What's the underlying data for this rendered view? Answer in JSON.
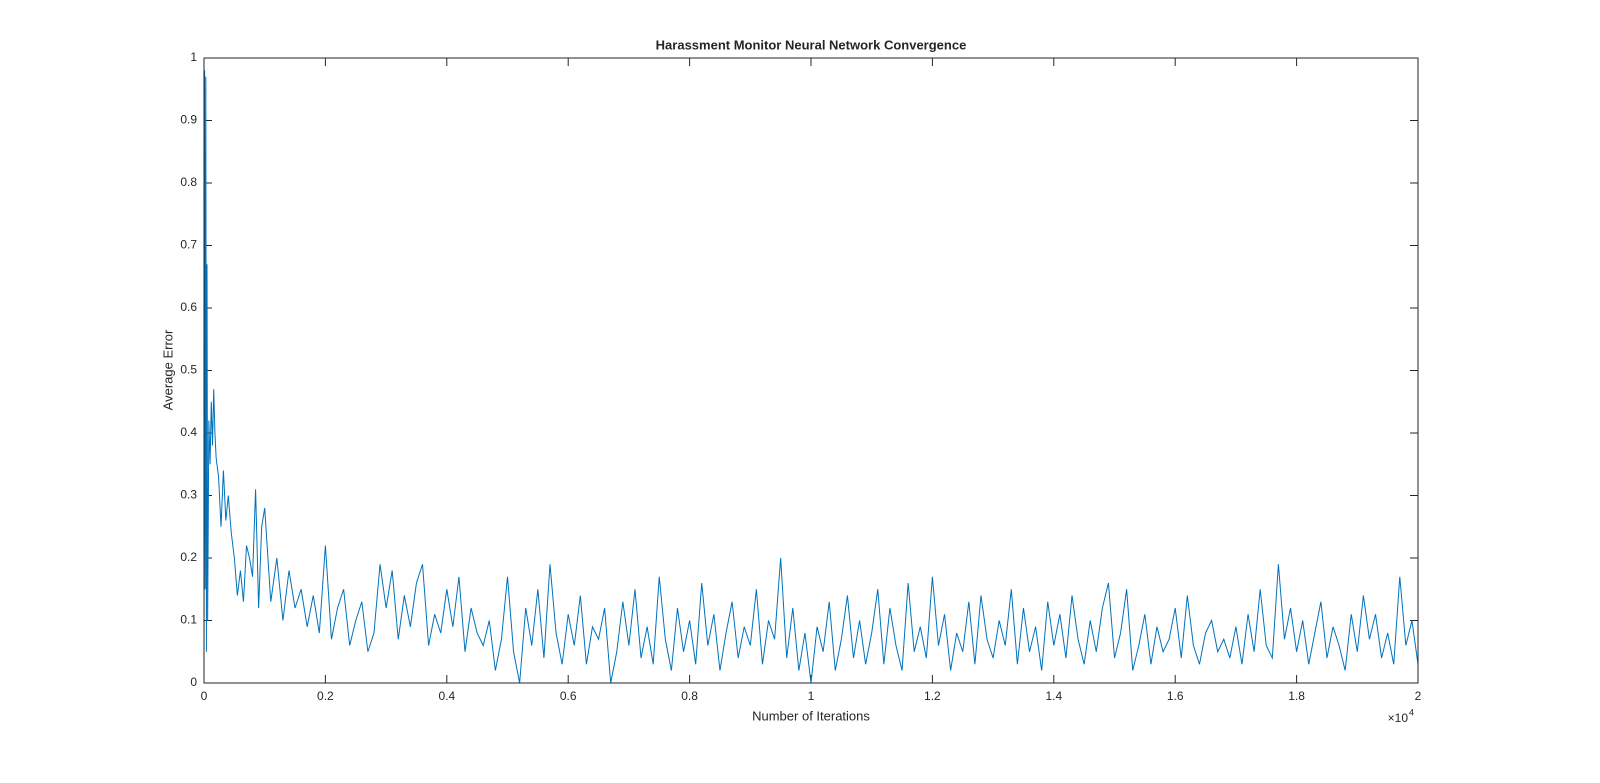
{
  "chart_data": {
    "type": "line",
    "title": "Harassment Monitor Neural Network Convergence",
    "xlabel": "Number of Iterations",
    "ylabel": "Average Error",
    "x_multiplier": "×10",
    "x_multiplier_power": "4",
    "color": "#0072bd",
    "xlim": [
      0,
      20000
    ],
    "xticks": [
      0,
      {
        "value": 2000,
        "label": "0.2"
      },
      {
        "value": 4000,
        "label": "0.4"
      },
      {
        "value": 6000,
        "label": "0.6"
      },
      {
        "value": 8000,
        "label": "0.8"
      },
      {
        "value": 10000,
        "label": "1"
      },
      {
        "value": 12000,
        "label": "1.2"
      },
      {
        "value": 14000,
        "label": "1.4"
      },
      {
        "value": 16000,
        "label": "1.6"
      },
      {
        "value": 18000,
        "label": "1.8"
      },
      {
        "value": 20000,
        "label": "2"
      }
    ],
    "ylim": [
      0,
      1
    ],
    "yticks": [
      0,
      0.1,
      0.2,
      0.3,
      0.4,
      0.5,
      0.6,
      0.7,
      0.8,
      0.9,
      1
    ],
    "x": [
      0,
      10,
      20,
      30,
      40,
      50,
      60,
      80,
      100,
      120,
      140,
      160,
      180,
      200,
      240,
      280,
      320,
      360,
      400,
      450,
      500,
      550,
      600,
      650,
      700,
      750,
      800,
      850,
      900,
      950,
      1000,
      1100,
      1200,
      1300,
      1400,
      1500,
      1600,
      1700,
      1800,
      1900,
      2000,
      2100,
      2200,
      2300,
      2400,
      2500,
      2600,
      2700,
      2800,
      2900,
      3000,
      3100,
      3200,
      3300,
      3400,
      3500,
      3600,
      3700,
      3800,
      3900,
      4000,
      4100,
      4200,
      4300,
      4400,
      4500,
      4600,
      4700,
      4800,
      4900,
      5000,
      5100,
      5200,
      5300,
      5400,
      5500,
      5600,
      5700,
      5800,
      5900,
      6000,
      6100,
      6200,
      6300,
      6400,
      6500,
      6600,
      6700,
      6800,
      6900,
      7000,
      7100,
      7200,
      7300,
      7400,
      7500,
      7600,
      7700,
      7800,
      7900,
      8000,
      8100,
      8200,
      8300,
      8400,
      8500,
      8600,
      8700,
      8800,
      8900,
      9000,
      9100,
      9200,
      9300,
      9400,
      9500,
      9600,
      9700,
      9800,
      9900,
      10000,
      10100,
      10200,
      10300,
      10400,
      10500,
      10600,
      10700,
      10800,
      10900,
      11000,
      11100,
      11200,
      11300,
      11400,
      11500,
      11600,
      11700,
      11800,
      11900,
      12000,
      12100,
      12200,
      12300,
      12400,
      12500,
      12600,
      12700,
      12800,
      12900,
      13000,
      13100,
      13200,
      13300,
      13400,
      13500,
      13600,
      13700,
      13800,
      13900,
      14000,
      14100,
      14200,
      14300,
      14400,
      14500,
      14600,
      14700,
      14800,
      14900,
      15000,
      15100,
      15200,
      15300,
      15400,
      15500,
      15600,
      15700,
      15800,
      15900,
      16000,
      16100,
      16200,
      16300,
      16400,
      16500,
      16600,
      16700,
      16800,
      16900,
      17000,
      17100,
      17200,
      17300,
      17400,
      17500,
      17600,
      17700,
      17800,
      17900,
      18000,
      18100,
      18200,
      18300,
      18400,
      18500,
      18600,
      18700,
      18800,
      18900,
      19000,
      19100,
      19200,
      19300,
      19400,
      19500,
      19600,
      19700,
      19800,
      19900,
      20000
    ],
    "values": [
      0.02,
      0.98,
      0.15,
      0.97,
      0.05,
      0.67,
      0.1,
      0.42,
      0.35,
      0.45,
      0.38,
      0.47,
      0.4,
      0.36,
      0.33,
      0.25,
      0.34,
      0.26,
      0.3,
      0.24,
      0.2,
      0.14,
      0.18,
      0.13,
      0.22,
      0.2,
      0.17,
      0.31,
      0.12,
      0.25,
      0.28,
      0.13,
      0.2,
      0.1,
      0.18,
      0.12,
      0.15,
      0.09,
      0.14,
      0.08,
      0.22,
      0.07,
      0.12,
      0.15,
      0.06,
      0.1,
      0.13,
      0.05,
      0.08,
      0.19,
      0.12,
      0.18,
      0.07,
      0.14,
      0.09,
      0.16,
      0.19,
      0.06,
      0.11,
      0.08,
      0.15,
      0.09,
      0.17,
      0.05,
      0.12,
      0.08,
      0.06,
      0.1,
      0.02,
      0.07,
      0.17,
      0.05,
      0.0,
      0.12,
      0.06,
      0.15,
      0.04,
      0.19,
      0.08,
      0.03,
      0.11,
      0.06,
      0.14,
      0.03,
      0.09,
      0.07,
      0.12,
      0.0,
      0.05,
      0.13,
      0.06,
      0.15,
      0.04,
      0.09,
      0.03,
      0.17,
      0.07,
      0.02,
      0.12,
      0.05,
      0.1,
      0.03,
      0.16,
      0.06,
      0.11,
      0.02,
      0.08,
      0.13,
      0.04,
      0.09,
      0.06,
      0.15,
      0.03,
      0.1,
      0.07,
      0.2,
      0.04,
      0.12,
      0.02,
      0.08,
      0.0,
      0.09,
      0.05,
      0.13,
      0.02,
      0.07,
      0.14,
      0.04,
      0.1,
      0.03,
      0.08,
      0.15,
      0.03,
      0.12,
      0.06,
      0.02,
      0.16,
      0.05,
      0.09,
      0.04,
      0.17,
      0.06,
      0.11,
      0.02,
      0.08,
      0.05,
      0.13,
      0.03,
      0.14,
      0.07,
      0.04,
      0.1,
      0.06,
      0.15,
      0.03,
      0.12,
      0.05,
      0.09,
      0.02,
      0.13,
      0.06,
      0.11,
      0.04,
      0.14,
      0.07,
      0.03,
      0.1,
      0.05,
      0.12,
      0.16,
      0.04,
      0.08,
      0.15,
      0.02,
      0.06,
      0.11,
      0.03,
      0.09,
      0.05,
      0.07,
      0.12,
      0.04,
      0.14,
      0.06,
      0.03,
      0.08,
      0.1,
      0.05,
      0.07,
      0.04,
      0.09,
      0.03,
      0.11,
      0.05,
      0.15,
      0.06,
      0.04,
      0.19,
      0.07,
      0.12,
      0.05,
      0.1,
      0.03,
      0.08,
      0.13,
      0.04,
      0.09,
      0.06,
      0.02,
      0.11,
      0.05,
      0.14,
      0.07,
      0.11,
      0.04,
      0.08,
      0.03,
      0.17,
      0.06,
      0.1,
      0.03
    ]
  }
}
